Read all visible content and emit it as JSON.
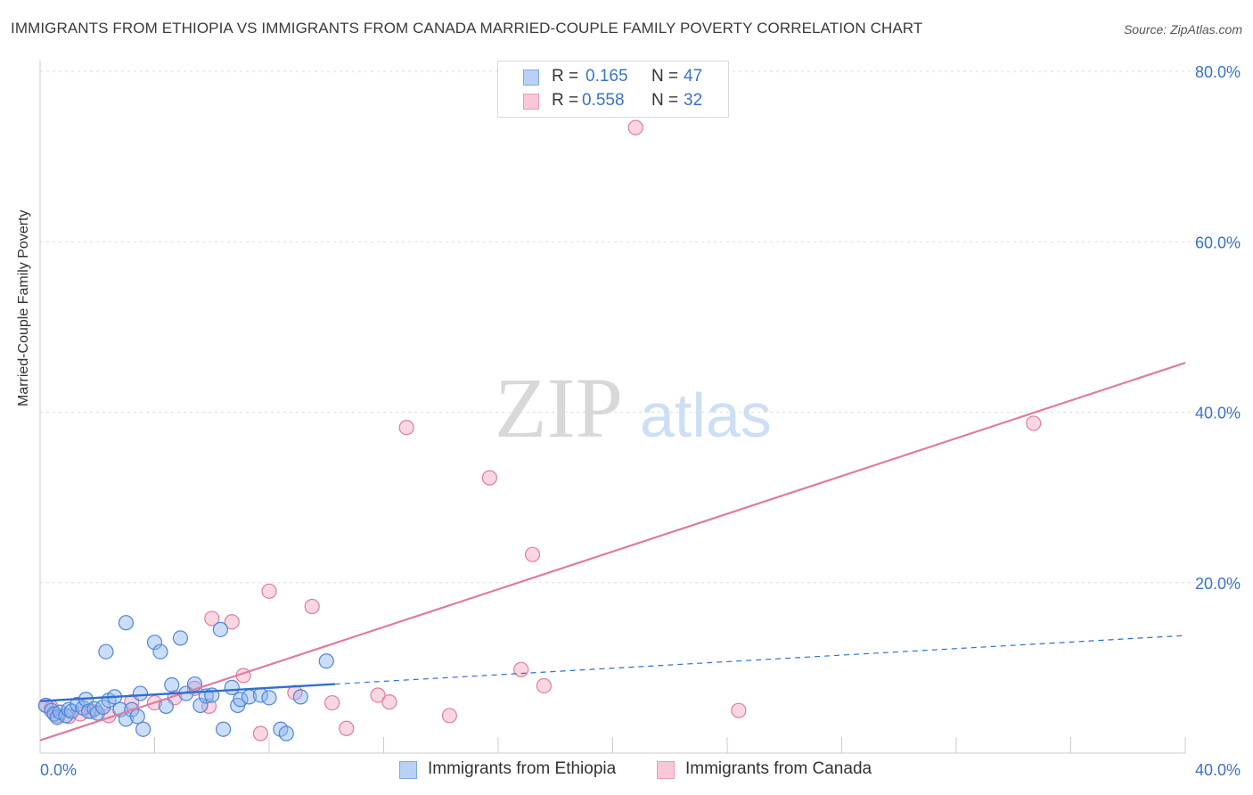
{
  "title": "IMMIGRANTS FROM ETHIOPIA VS IMMIGRANTS FROM CANADA MARRIED-COUPLE FAMILY POVERTY CORRELATION CHART",
  "source": "Source: ZipAtlas.com",
  "watermark": {
    "zip": "ZIP",
    "atlas": "atlas"
  },
  "legend_top": {
    "rows": [
      {
        "r_label": "R =",
        "r_value": "0.165",
        "n_label": "N =",
        "n_value": "47",
        "color": "#8cb4ee"
      },
      {
        "r_label": "R =",
        "r_value": "0.558",
        "n_label": "N =",
        "n_value": "32",
        "color": "#f2a6bf"
      }
    ]
  },
  "chart_data": {
    "type": "scatter",
    "title": "IMMIGRANTS FROM ETHIOPIA VS IMMIGRANTS FROM CANADA MARRIED-COUPLE FAMILY POVERTY CORRELATION CHART",
    "xlabel": "",
    "ylabel": "Married-Couple Family Poverty",
    "xlim": [
      0,
      40
    ],
    "ylim": [
      0,
      80
    ],
    "x_tick_labels": [
      "0.0%",
      "40.0%"
    ],
    "y_tick_labels": [
      "20.0%",
      "40.0%",
      "60.0%",
      "80.0%"
    ],
    "y_ticks": [
      20,
      40,
      60,
      80
    ],
    "grid": true,
    "legend_position": "bottom",
    "series": [
      {
        "name": "Immigrants from Ethiopia",
        "color": "#8cb4ee",
        "stroke": "#4f86d6",
        "line_color": "#2f6fd0",
        "trend_solid": [
          [
            0,
            6.1
          ],
          [
            10.3,
            8.1
          ]
        ],
        "trend_dashed": [
          [
            10.3,
            8.1
          ],
          [
            40,
            13.8
          ]
        ],
        "points": [
          [
            0.2,
            5.6
          ],
          [
            0.4,
            5.0
          ],
          [
            0.5,
            4.6
          ],
          [
            0.6,
            4.2
          ],
          [
            0.7,
            4.8
          ],
          [
            0.9,
            4.4
          ],
          [
            1.0,
            5.1
          ],
          [
            1.1,
            4.9
          ],
          [
            1.3,
            5.7
          ],
          [
            1.5,
            5.3
          ],
          [
            1.6,
            6.3
          ],
          [
            1.7,
            4.9
          ],
          [
            1.9,
            5.2
          ],
          [
            2.0,
            4.7
          ],
          [
            2.2,
            5.4
          ],
          [
            2.4,
            6.2
          ],
          [
            2.6,
            6.6
          ],
          [
            2.8,
            5.1
          ],
          [
            3.0,
            4.0
          ],
          [
            3.2,
            5.1
          ],
          [
            3.4,
            4.3
          ],
          [
            3.6,
            2.8
          ],
          [
            4.0,
            13.0
          ],
          [
            4.2,
            11.9
          ],
          [
            4.4,
            5.5
          ],
          [
            4.6,
            8.0
          ],
          [
            5.1,
            7.0
          ],
          [
            5.4,
            8.1
          ],
          [
            5.6,
            5.6
          ],
          [
            5.8,
            6.7
          ],
          [
            6.0,
            6.8
          ],
          [
            6.3,
            14.5
          ],
          [
            6.4,
            2.8
          ],
          [
            6.7,
            7.7
          ],
          [
            6.9,
            5.6
          ],
          [
            7.0,
            6.3
          ],
          [
            7.3,
            6.6
          ],
          [
            7.7,
            6.8
          ],
          [
            8.0,
            6.5
          ],
          [
            8.4,
            2.8
          ],
          [
            8.6,
            2.3
          ],
          [
            9.1,
            6.6
          ],
          [
            2.3,
            11.9
          ],
          [
            3.0,
            15.3
          ],
          [
            3.5,
            7.0
          ],
          [
            4.9,
            13.5
          ],
          [
            10.0,
            10.8
          ]
        ]
      },
      {
        "name": "Immigrants from Canada",
        "color": "#f2a6bf",
        "stroke": "#e07c9f",
        "line_color": "#e07ba0",
        "trend_solid": [
          [
            0,
            1.5
          ],
          [
            40,
            45.8
          ]
        ],
        "points": [
          [
            0.2,
            5.6
          ],
          [
            0.6,
            4.4
          ],
          [
            1.0,
            4.3
          ],
          [
            1.8,
            4.9
          ],
          [
            2.4,
            4.4
          ],
          [
            3.2,
            6.0
          ],
          [
            4.0,
            5.9
          ],
          [
            4.7,
            6.5
          ],
          [
            5.4,
            7.6
          ],
          [
            5.9,
            5.5
          ],
          [
            6.0,
            15.8
          ],
          [
            6.7,
            15.4
          ],
          [
            7.1,
            9.1
          ],
          [
            7.7,
            2.3
          ],
          [
            8.0,
            19.0
          ],
          [
            8.9,
            7.1
          ],
          [
            9.5,
            17.2
          ],
          [
            10.2,
            5.9
          ],
          [
            10.7,
            2.9
          ],
          [
            11.8,
            6.8
          ],
          [
            12.2,
            6.0
          ],
          [
            12.8,
            38.2
          ],
          [
            14.3,
            4.4
          ],
          [
            15.7,
            32.3
          ],
          [
            16.8,
            9.8
          ],
          [
            17.2,
            23.3
          ],
          [
            17.6,
            7.9
          ],
          [
            20.8,
            73.4
          ],
          [
            24.4,
            5.0
          ],
          [
            34.7,
            38.7
          ],
          [
            0.4,
            5.3
          ],
          [
            1.4,
            4.6
          ]
        ]
      }
    ]
  }
}
